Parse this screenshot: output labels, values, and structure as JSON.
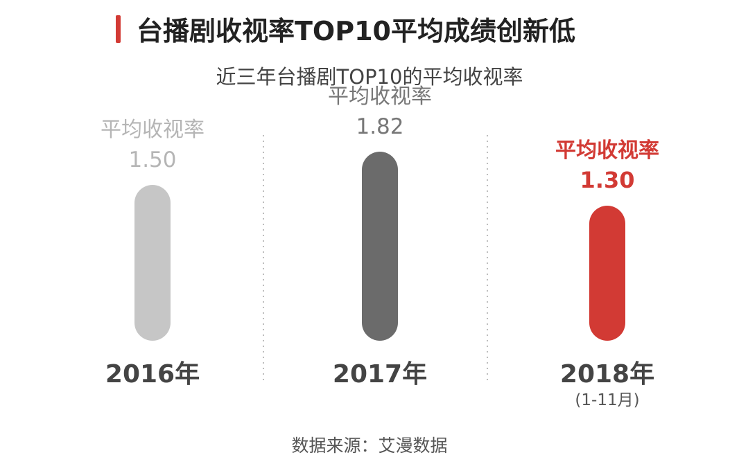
{
  "header": {
    "title": "台播剧收视率TOP10平均成绩创新低",
    "subtitle": "近三年台播剧TOP10的平均收视率"
  },
  "chart_data": {
    "type": "bar",
    "categories": [
      "2016年",
      "2017年",
      "2018年"
    ],
    "category_notes": [
      "",
      "",
      "(1-11月)"
    ],
    "value_label": "平均收视率",
    "values": [
      1.5,
      1.82,
      1.3
    ],
    "value_texts": [
      "1.50",
      "1.82",
      "1.30"
    ],
    "colors": [
      "#c6c6c6",
      "#6b6b6b",
      "#d23a34"
    ],
    "label_colors": [
      "#b5b5b5",
      "#777777",
      "#d23a34"
    ],
    "highlight_index": 2,
    "ylim": [
      0,
      2.0
    ]
  },
  "footer": {
    "source": "数据来源：艾漫数据"
  }
}
